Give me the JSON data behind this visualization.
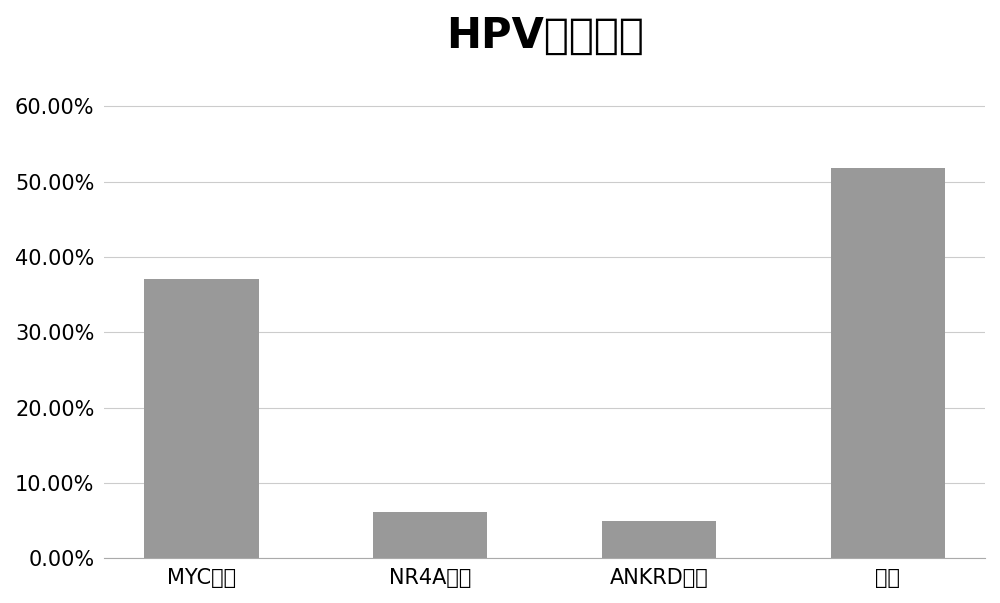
{
  "title": "HPV整合位点",
  "categories": [
    "MYC家族",
    "NR4A家族",
    "ANKRD家族",
    "其他"
  ],
  "values": [
    0.3704,
    0.0617,
    0.0494,
    0.5185
  ],
  "bar_color": "#999999",
  "background_color": "#ffffff",
  "ylim": [
    0,
    0.65
  ],
  "yticks": [
    0.0,
    0.1,
    0.2,
    0.3,
    0.4,
    0.5,
    0.6
  ],
  "title_fontsize": 30,
  "tick_fontsize": 15,
  "grid_color": "#cccccc",
  "bar_width": 0.5
}
